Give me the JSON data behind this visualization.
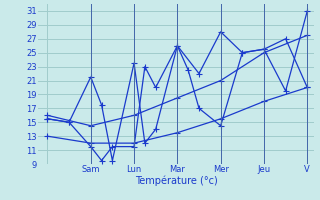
{
  "xlabel": "Température (°c)",
  "background_color": "#caeaea",
  "grid_color": "#a0cccc",
  "line_color": "#1a3acc",
  "ylim": [
    9,
    32
  ],
  "yticks": [
    9,
    11,
    13,
    15,
    17,
    19,
    21,
    23,
    25,
    27,
    29,
    31
  ],
  "day_labels": [
    "",
    "Sam",
    "Lun",
    "Mar",
    "Mer",
    "Jeu",
    "V"
  ],
  "day_positions": [
    0,
    48,
    96,
    144,
    192,
    240,
    288
  ],
  "xlim": [
    -10,
    295
  ],
  "line1_x": [
    0,
    24,
    48,
    60,
    72,
    96,
    108,
    120,
    144,
    168,
    192,
    216,
    240,
    264,
    288
  ],
  "line1_y": [
    15.5,
    15.0,
    11.5,
    9.5,
    11.5,
    11.5,
    23.0,
    20.0,
    26.0,
    22.0,
    28.0,
    25.0,
    25.5,
    19.5,
    31.0
  ],
  "line2_x": [
    0,
    24,
    48,
    60,
    72,
    96,
    108,
    120,
    144,
    156,
    168,
    192,
    216,
    240,
    264,
    288
  ],
  "line2_y": [
    15.5,
    15.0,
    21.5,
    17.5,
    9.5,
    23.5,
    12.0,
    14.0,
    26.0,
    22.5,
    17.0,
    14.5,
    25.0,
    25.5,
    27.0,
    20.0
  ],
  "line3_x": [
    0,
    48,
    96,
    144,
    192,
    240,
    288
  ],
  "line3_y": [
    13.0,
    12.0,
    12.0,
    13.5,
    15.5,
    18.0,
    20.0
  ],
  "line4_x": [
    0,
    48,
    96,
    144,
    192,
    240,
    288
  ],
  "line4_y": [
    16.0,
    14.5,
    16.0,
    18.5,
    21.0,
    25.0,
    27.5
  ]
}
